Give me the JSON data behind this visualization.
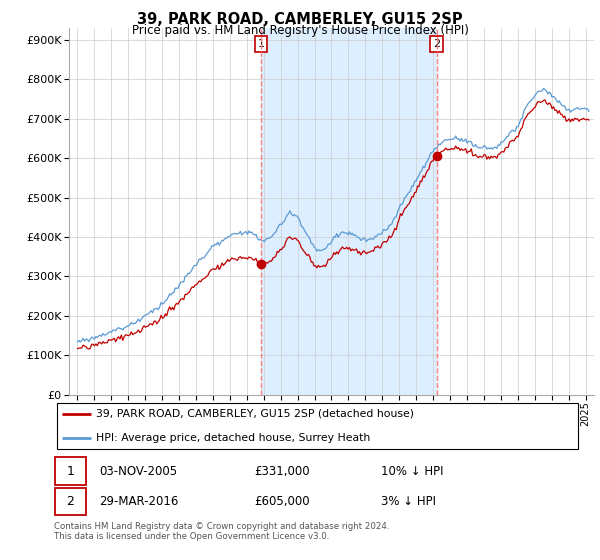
{
  "title": "39, PARK ROAD, CAMBERLEY, GU15 2SP",
  "subtitle": "Price paid vs. HM Land Registry's House Price Index (HPI)",
  "legend_line1": "39, PARK ROAD, CAMBERLEY, GU15 2SP (detached house)",
  "legend_line2": "HPI: Average price, detached house, Surrey Heath",
  "sale1_date": "03-NOV-2005",
  "sale1_price": "£331,000",
  "sale1_hpi": "10% ↓ HPI",
  "sale2_date": "29-MAR-2016",
  "sale2_price": "£605,000",
  "sale2_hpi": "3% ↓ HPI",
  "footnote": "Contains HM Land Registry data © Crown copyright and database right 2024.\nThis data is licensed under the Open Government Licence v3.0.",
  "hpi_color": "#5b9bd5",
  "price_color": "#c00000",
  "sale_marker_color": "#c00000",
  "vline_color": "#ff8080",
  "annotation_box_color": "#c00000",
  "shade_color": "#ddeeff",
  "ylim_max": 950000,
  "ylim_min": 0,
  "sale1_year": 2005.833,
  "sale2_year": 2016.208,
  "sale1_price_val": 331000,
  "sale2_price_val": 605000,
  "xlim_min": 1994.5,
  "xlim_max": 2025.5
}
